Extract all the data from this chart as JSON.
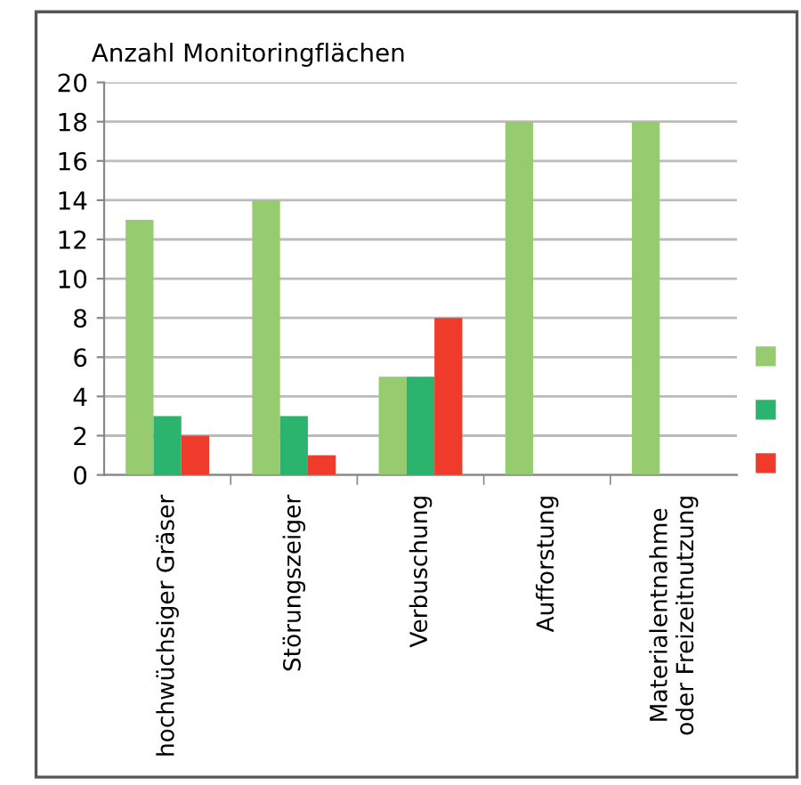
{
  "chart_data": {
    "type": "bar",
    "ylabel": "Anzahl Monitoringflächen",
    "categories": [
      "hochwüchsiger Gräser",
      "Störungszeiger",
      "Verbuschung",
      "Aufforstung",
      "Materialentnahme\noder Freizeitnutzung"
    ],
    "series": [
      {
        "color": "#97cb6f",
        "values": [
          13,
          14,
          5,
          18,
          18
        ]
      },
      {
        "color": "#2bb46e",
        "values": [
          3,
          3,
          5,
          0,
          0
        ]
      },
      {
        "color": "#ef3b2c",
        "values": [
          2,
          1,
          8,
          0,
          0
        ]
      }
    ],
    "ylim": [
      0,
      20
    ],
    "yticks": [
      0,
      2,
      4,
      6,
      8,
      10,
      12,
      14,
      16,
      18,
      20
    ],
    "grid": "y"
  }
}
